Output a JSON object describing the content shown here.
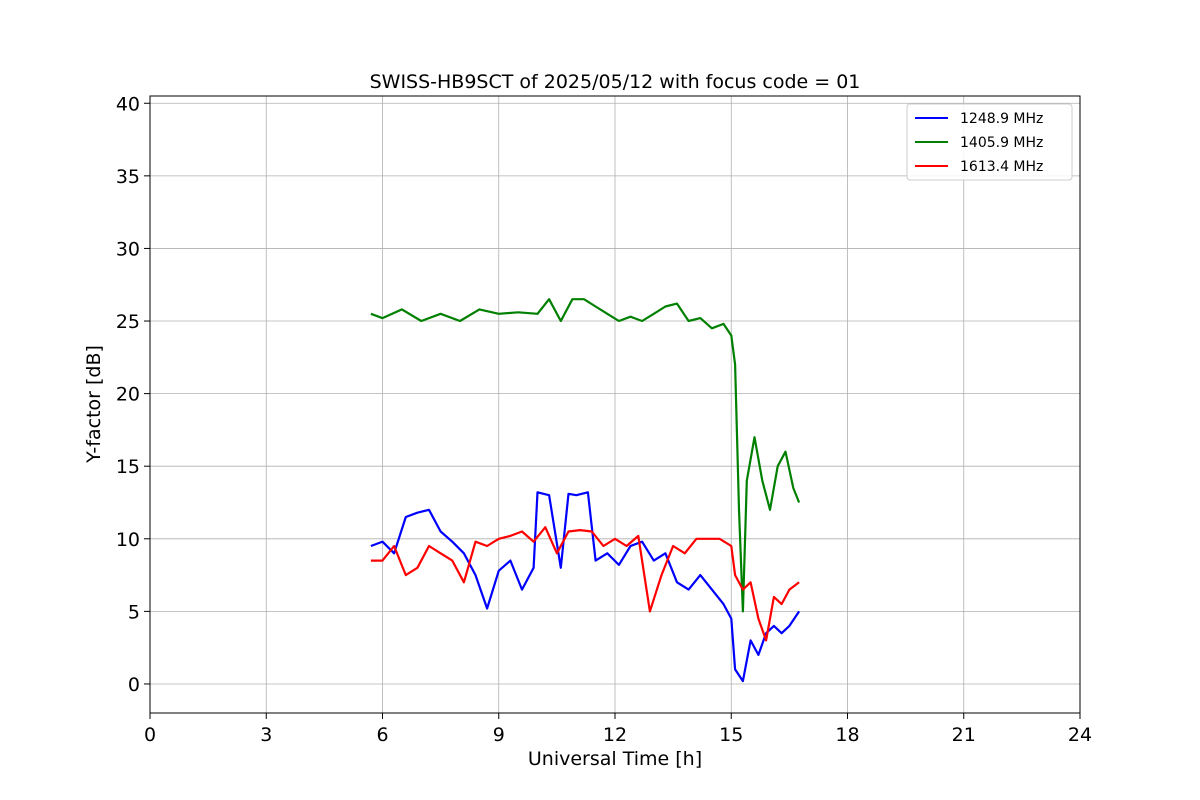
{
  "chart_data": {
    "type": "line",
    "title": "SWISS-HB9SCT of 2025/05/12 with focus code = 01",
    "xlabel": "Universal Time [h]",
    "ylabel": "Y-factor [dB]",
    "xlim": [
      0,
      24
    ],
    "ylim": [
      -2,
      40.5
    ],
    "xticks": [
      0,
      3,
      6,
      9,
      12,
      15,
      18,
      21,
      24
    ],
    "yticks": [
      0,
      5,
      10,
      15,
      20,
      25,
      30,
      35,
      40
    ],
    "grid": true,
    "legend_position": "top-right",
    "series": [
      {
        "name": "1248.9 MHz",
        "color": "#0000ff",
        "points": [
          [
            5.7,
            9.5
          ],
          [
            6.0,
            9.8
          ],
          [
            6.3,
            9.0
          ],
          [
            6.6,
            11.5
          ],
          [
            6.9,
            11.8
          ],
          [
            7.2,
            12.0
          ],
          [
            7.5,
            10.5
          ],
          [
            7.8,
            9.8
          ],
          [
            8.1,
            9.0
          ],
          [
            8.4,
            7.5
          ],
          [
            8.7,
            5.2
          ],
          [
            9.0,
            7.8
          ],
          [
            9.3,
            8.5
          ],
          [
            9.6,
            6.5
          ],
          [
            9.9,
            8.0
          ],
          [
            10.0,
            13.2
          ],
          [
            10.3,
            13.0
          ],
          [
            10.6,
            8.0
          ],
          [
            10.8,
            13.1
          ],
          [
            11.0,
            13.0
          ],
          [
            11.3,
            13.2
          ],
          [
            11.5,
            8.5
          ],
          [
            11.8,
            9.0
          ],
          [
            12.1,
            8.2
          ],
          [
            12.4,
            9.5
          ],
          [
            12.7,
            9.8
          ],
          [
            13.0,
            8.5
          ],
          [
            13.3,
            9.0
          ],
          [
            13.6,
            7.0
          ],
          [
            13.9,
            6.5
          ],
          [
            14.2,
            7.5
          ],
          [
            14.5,
            6.5
          ],
          [
            14.8,
            5.5
          ],
          [
            15.0,
            4.5
          ],
          [
            15.1,
            1.0
          ],
          [
            15.3,
            0.2
          ],
          [
            15.5,
            3.0
          ],
          [
            15.7,
            2.0
          ],
          [
            15.9,
            3.5
          ],
          [
            16.1,
            4.0
          ],
          [
            16.3,
            3.5
          ],
          [
            16.5,
            4.0
          ],
          [
            16.75,
            5.0
          ]
        ]
      },
      {
        "name": "1405.9 MHz",
        "color": "#008000",
        "points": [
          [
            5.7,
            25.5
          ],
          [
            6.0,
            25.2
          ],
          [
            6.5,
            25.8
          ],
          [
            7.0,
            25.0
          ],
          [
            7.5,
            25.5
          ],
          [
            8.0,
            25.0
          ],
          [
            8.5,
            25.8
          ],
          [
            9.0,
            25.5
          ],
          [
            9.5,
            25.6
          ],
          [
            10.0,
            25.5
          ],
          [
            10.3,
            26.5
          ],
          [
            10.6,
            25.0
          ],
          [
            10.9,
            26.5
          ],
          [
            11.2,
            26.5
          ],
          [
            11.5,
            26.0
          ],
          [
            11.8,
            25.5
          ],
          [
            12.1,
            25.0
          ],
          [
            12.4,
            25.3
          ],
          [
            12.7,
            25.0
          ],
          [
            13.0,
            25.5
          ],
          [
            13.3,
            26.0
          ],
          [
            13.6,
            26.2
          ],
          [
            13.9,
            25.0
          ],
          [
            14.2,
            25.2
          ],
          [
            14.5,
            24.5
          ],
          [
            14.8,
            24.8
          ],
          [
            15.0,
            24.0
          ],
          [
            15.1,
            22.0
          ],
          [
            15.2,
            12.0
          ],
          [
            15.3,
            5.0
          ],
          [
            15.4,
            14.0
          ],
          [
            15.6,
            17.0
          ],
          [
            15.8,
            14.0
          ],
          [
            16.0,
            12.0
          ],
          [
            16.2,
            15.0
          ],
          [
            16.4,
            16.0
          ],
          [
            16.6,
            13.5
          ],
          [
            16.75,
            12.5
          ]
        ]
      },
      {
        "name": "1613.4 MHz",
        "color": "#ff0000",
        "points": [
          [
            5.7,
            8.5
          ],
          [
            6.0,
            8.5
          ],
          [
            6.3,
            9.5
          ],
          [
            6.6,
            7.5
          ],
          [
            6.9,
            8.0
          ],
          [
            7.2,
            9.5
          ],
          [
            7.5,
            9.0
          ],
          [
            7.8,
            8.5
          ],
          [
            8.1,
            7.0
          ],
          [
            8.4,
            9.8
          ],
          [
            8.7,
            9.5
          ],
          [
            9.0,
            10.0
          ],
          [
            9.3,
            10.2
          ],
          [
            9.6,
            10.5
          ],
          [
            9.9,
            9.8
          ],
          [
            10.2,
            10.8
          ],
          [
            10.5,
            9.0
          ],
          [
            10.8,
            10.5
          ],
          [
            11.1,
            10.6
          ],
          [
            11.4,
            10.5
          ],
          [
            11.7,
            9.5
          ],
          [
            12.0,
            10.0
          ],
          [
            12.3,
            9.5
          ],
          [
            12.6,
            10.2
          ],
          [
            12.9,
            5.0
          ],
          [
            13.2,
            7.5
          ],
          [
            13.5,
            9.5
          ],
          [
            13.8,
            9.0
          ],
          [
            14.1,
            10.0
          ],
          [
            14.4,
            10.0
          ],
          [
            14.7,
            10.0
          ],
          [
            15.0,
            9.5
          ],
          [
            15.1,
            7.5
          ],
          [
            15.3,
            6.5
          ],
          [
            15.5,
            7.0
          ],
          [
            15.7,
            4.5
          ],
          [
            15.9,
            3.0
          ],
          [
            16.1,
            6.0
          ],
          [
            16.3,
            5.5
          ],
          [
            16.5,
            6.5
          ],
          [
            16.75,
            7.0
          ]
        ]
      }
    ]
  }
}
